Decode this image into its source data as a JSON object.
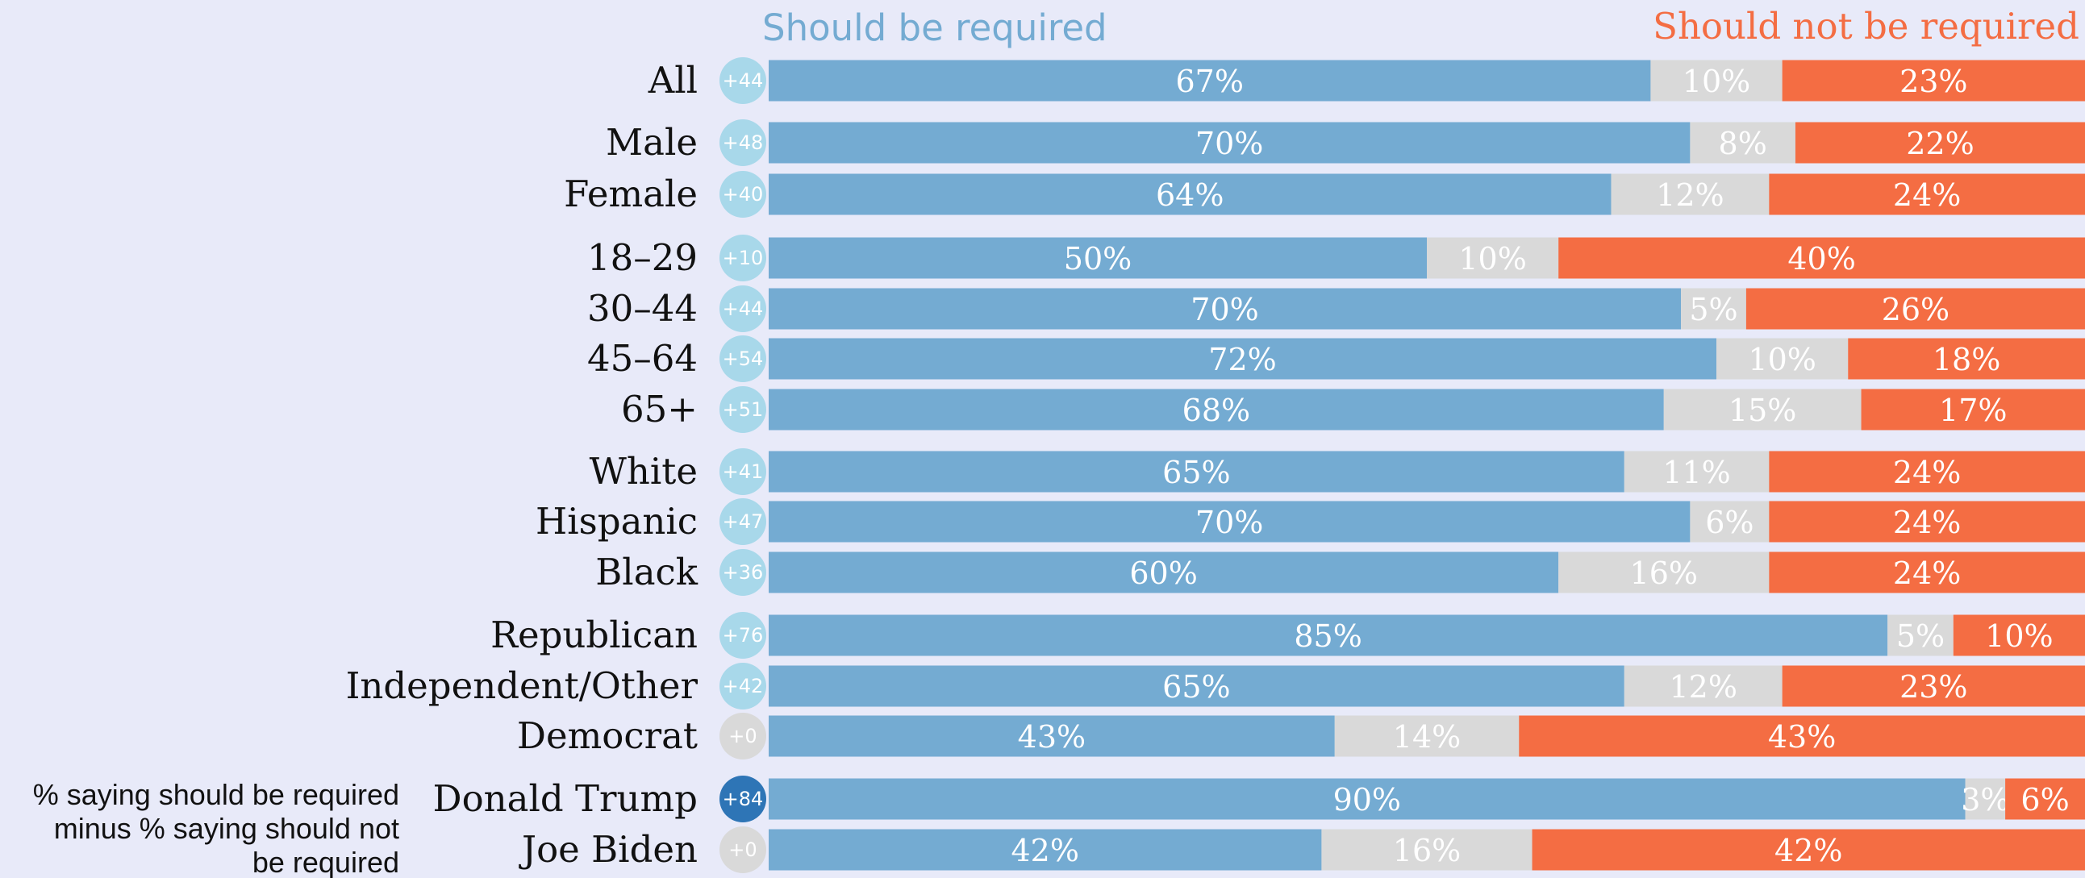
{
  "colors": {
    "required": "#74abd2",
    "neutral": "#d9d9d9",
    "not_required": "#f46d43",
    "badge_light": "#a8d8ea",
    "badge_dark": "#2e75b6",
    "badge_zero": "#d9d9d9",
    "background": "#e8eaf9"
  },
  "note": [
    "% saying should be required",
    "minus % saying should not",
    "be required"
  ],
  "chart_data": {
    "type": "bar",
    "stacked": true,
    "orientation": "horizontal",
    "legend": {
      "left": "Should be required",
      "right": "Should not be required"
    },
    "categories": [
      "All",
      "Male",
      "Female",
      "18–29",
      "30–44",
      "45–64",
      "65+",
      "White",
      "Hispanic",
      "Black",
      "Republican",
      "Independent/Other",
      "Democrat",
      "Donald Trump",
      "Joe Biden"
    ],
    "groups": [
      [
        0
      ],
      [
        1,
        2
      ],
      [
        3,
        4,
        5,
        6
      ],
      [
        7,
        8,
        9
      ],
      [
        10,
        11,
        12
      ],
      [
        13,
        14
      ]
    ],
    "series": [
      {
        "name": "Should be required",
        "values": [
          67,
          70,
          64,
          50,
          70,
          72,
          68,
          65,
          70,
          60,
          85,
          65,
          43,
          90,
          42
        ]
      },
      {
        "name": "",
        "values": [
          10,
          8,
          12,
          10,
          5,
          10,
          15,
          11,
          6,
          16,
          5,
          12,
          14,
          3,
          16
        ]
      },
      {
        "name": "Should not be required",
        "values": [
          23,
          22,
          24,
          40,
          26,
          18,
          17,
          24,
          24,
          24,
          10,
          23,
          43,
          6,
          42
        ]
      }
    ],
    "value_labels": [
      [
        "67%",
        "10%",
        "23%"
      ],
      [
        "70%",
        "8%",
        "22%"
      ],
      [
        "64%",
        "12%",
        "24%"
      ],
      [
        "50%",
        "10%",
        "40%"
      ],
      [
        "70%",
        "5%",
        "26%"
      ],
      [
        "72%",
        "10%",
        "18%"
      ],
      [
        "68%",
        "15%",
        "17%"
      ],
      [
        "65%",
        "11%",
        "24%"
      ],
      [
        "70%",
        "6%",
        "24%"
      ],
      [
        "60%",
        "16%",
        "24%"
      ],
      [
        "85%",
        "5%",
        "10%"
      ],
      [
        "65%",
        "12%",
        "23%"
      ],
      [
        "43%",
        "14%",
        "43%"
      ],
      [
        "90%",
        "3%",
        "6%"
      ],
      [
        "42%",
        "16%",
        "42%"
      ]
    ],
    "net_labels": [
      "+44",
      "+48",
      "+40",
      "+10",
      "+44",
      "+54",
      "+51",
      "+41",
      "+47",
      "+36",
      "+76",
      "+42",
      "+0",
      "+84",
      "+0"
    ],
    "net_badge_style": [
      "light",
      "light",
      "light",
      "light",
      "light",
      "light",
      "light",
      "light",
      "light",
      "light",
      "light",
      "light",
      "zero",
      "dark",
      "zero"
    ]
  }
}
